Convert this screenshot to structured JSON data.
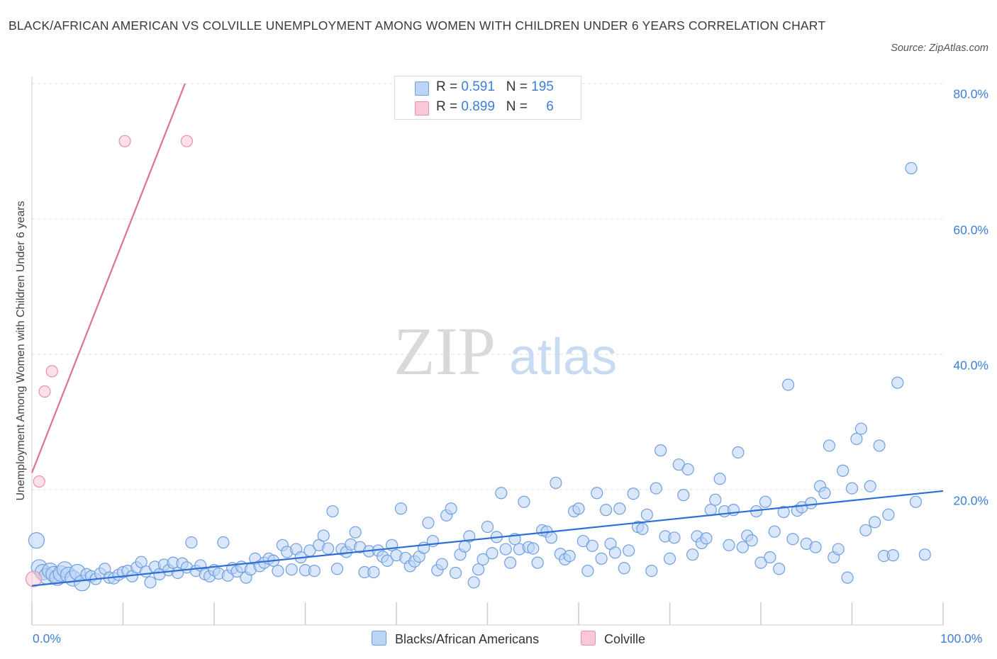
{
  "title": "BLACK/AFRICAN AMERICAN VS COLVILLE UNEMPLOYMENT AMONG WOMEN WITH CHILDREN UNDER 6 YEARS CORRELATION CHART",
  "source": "Source: ZipAtlas.com",
  "watermark": {
    "zip": "ZIP",
    "atlas": "atlas"
  },
  "legend": {
    "r_label": "R =",
    "n_label": "N =",
    "rows": [
      {
        "r": "0.591",
        "n": "195",
        "color": "#bcd4f5",
        "border": "#6f9fe0"
      },
      {
        "r": "0.899",
        "n": "6",
        "color": "#fac8d6",
        "border": "#e88fab"
      }
    ]
  },
  "bottom_legend": [
    {
      "label": "Blacks/African Americans",
      "color": "#bcd4f5",
      "border": "#6f9fe0"
    },
    {
      "label": "Colville",
      "color": "#fac8d6",
      "border": "#e88fab"
    }
  ],
  "chart_data": {
    "type": "scatter",
    "xlabel": "",
    "ylabel": "Unemployment Among Women with Children Under 6 years",
    "xlim": [
      0,
      100
    ],
    "ylim": [
      0,
      80
    ],
    "x_tick_labels": [
      "0.0%",
      "100.0%"
    ],
    "y_tick_labels": [
      "20.0%",
      "40.0%",
      "60.0%",
      "80.0%"
    ],
    "y_ticks": [
      20,
      40,
      60,
      80
    ],
    "grid": "horizontal dashed",
    "series": [
      {
        "name": "Blacks/African Americans",
        "color": "#6f9fe0",
        "fill": "#bcd4f5",
        "trend": {
          "x0": 0,
          "y0": 5.8,
          "x1": 100,
          "y1": 19.8
        },
        "points": [
          [
            0.5,
            12.5
          ],
          [
            0.8,
            8.5
          ],
          [
            1.2,
            7.8
          ],
          [
            1.6,
            7.2
          ],
          [
            2.0,
            8.0
          ],
          [
            2.4,
            7.5
          ],
          [
            2.8,
            7.0
          ],
          [
            3.2,
            7.6
          ],
          [
            3.6,
            8.2
          ],
          [
            4.0,
            7.4
          ],
          [
            4.5,
            6.9
          ],
          [
            5.0,
            7.8
          ],
          [
            5.5,
            6.2
          ],
          [
            6.0,
            7.5
          ],
          [
            6.5,
            7.2
          ],
          [
            7.0,
            6.8
          ],
          [
            7.5,
            7.6
          ],
          [
            8.0,
            8.3
          ],
          [
            8.5,
            7.0
          ],
          [
            9.0,
            6.9
          ],
          [
            9.5,
            7.4
          ],
          [
            10.0,
            7.8
          ],
          [
            10.5,
            8.0
          ],
          [
            11.0,
            7.2
          ],
          [
            11.5,
            8.5
          ],
          [
            12.0,
            9.3
          ],
          [
            12.5,
            7.9
          ],
          [
            13.0,
            6.3
          ],
          [
            13.5,
            8.6
          ],
          [
            14.0,
            7.5
          ],
          [
            14.5,
            8.9
          ],
          [
            15.0,
            8.1
          ],
          [
            15.5,
            9.2
          ],
          [
            16.0,
            7.7
          ],
          [
            16.5,
            9.1
          ],
          [
            17.0,
            8.5
          ],
          [
            17.5,
            12.2
          ],
          [
            18.0,
            8.0
          ],
          [
            18.5,
            8.8
          ],
          [
            19.0,
            7.5
          ],
          [
            19.5,
            7.2
          ],
          [
            20.0,
            8.1
          ],
          [
            20.5,
            7.6
          ],
          [
            21.0,
            12.2
          ],
          [
            21.5,
            7.3
          ],
          [
            22.0,
            8.4
          ],
          [
            22.5,
            7.9
          ],
          [
            23.0,
            8.6
          ],
          [
            23.5,
            7.0
          ],
          [
            24.0,
            8.2
          ],
          [
            24.5,
            9.8
          ],
          [
            25.0,
            8.7
          ],
          [
            25.5,
            9.2
          ],
          [
            26.0,
            9.8
          ],
          [
            26.5,
            9.5
          ],
          [
            27.0,
            8.0
          ],
          [
            27.5,
            11.8
          ],
          [
            28.0,
            10.8
          ],
          [
            28.5,
            8.2
          ],
          [
            29.0,
            11.2
          ],
          [
            29.5,
            10.0
          ],
          [
            30.0,
            8.1
          ],
          [
            30.5,
            11.0
          ],
          [
            31.0,
            8.0
          ],
          [
            31.5,
            11.8
          ],
          [
            32.0,
            13.2
          ],
          [
            32.5,
            11.3
          ],
          [
            33.0,
            16.8
          ],
          [
            33.5,
            8.3
          ],
          [
            34.0,
            11.2
          ],
          [
            34.5,
            10.8
          ],
          [
            35.0,
            11.9
          ],
          [
            35.5,
            13.7
          ],
          [
            36.0,
            11.5
          ],
          [
            36.5,
            7.8
          ],
          [
            37.0,
            10.9
          ],
          [
            37.5,
            7.8
          ],
          [
            38.0,
            11.0
          ],
          [
            38.5,
            10.1
          ],
          [
            39.0,
            9.5
          ],
          [
            39.5,
            11.8
          ],
          [
            40.0,
            10.3
          ],
          [
            40.5,
            17.2
          ],
          [
            41.0,
            9.9
          ],
          [
            41.5,
            8.7
          ],
          [
            42.0,
            9.4
          ],
          [
            42.5,
            10.1
          ],
          [
            43.0,
            11.4
          ],
          [
            43.5,
            15.1
          ],
          [
            44.0,
            12.4
          ],
          [
            44.5,
            8.1
          ],
          [
            45.0,
            9.0
          ],
          [
            45.5,
            16.2
          ],
          [
            46.0,
            17.2
          ],
          [
            46.5,
            7.7
          ],
          [
            47.0,
            10.4
          ],
          [
            47.5,
            11.6
          ],
          [
            48.0,
            13.1
          ],
          [
            48.5,
            6.3
          ],
          [
            49.0,
            8.2
          ],
          [
            49.5,
            9.7
          ],
          [
            50.0,
            14.5
          ],
          [
            50.5,
            10.6
          ],
          [
            51.0,
            13.0
          ],
          [
            51.5,
            19.5
          ],
          [
            52.0,
            11.2
          ],
          [
            52.5,
            9.2
          ],
          [
            53.0,
            12.7
          ],
          [
            53.5,
            11.2
          ],
          [
            54.0,
            18.2
          ],
          [
            54.5,
            11.5
          ],
          [
            55.0,
            11.3
          ],
          [
            55.5,
            9.2
          ],
          [
            56.0,
            14.0
          ],
          [
            56.5,
            13.8
          ],
          [
            57.0,
            12.9
          ],
          [
            57.5,
            21.0
          ],
          [
            58.0,
            10.5
          ],
          [
            58.5,
            9.7
          ],
          [
            59.0,
            10.2
          ],
          [
            59.5,
            16.8
          ],
          [
            60.0,
            17.2
          ],
          [
            60.5,
            12.4
          ],
          [
            61.0,
            8.0
          ],
          [
            61.5,
            11.7
          ],
          [
            62.0,
            19.5
          ],
          [
            62.5,
            9.8
          ],
          [
            63.0,
            17.0
          ],
          [
            63.5,
            12.0
          ],
          [
            64.0,
            10.7
          ],
          [
            64.5,
            17.2
          ],
          [
            65.0,
            8.4
          ],
          [
            65.5,
            11.0
          ],
          [
            66.0,
            19.4
          ],
          [
            66.5,
            14.5
          ],
          [
            67.0,
            14.2
          ],
          [
            67.5,
            16.3
          ],
          [
            68.0,
            8.0
          ],
          [
            68.5,
            20.2
          ],
          [
            69.0,
            25.8
          ],
          [
            69.5,
            13.1
          ],
          [
            70.0,
            9.8
          ],
          [
            70.5,
            12.9
          ],
          [
            71.0,
            23.7
          ],
          [
            71.5,
            19.2
          ],
          [
            72.0,
            23.0
          ],
          [
            72.5,
            10.4
          ],
          [
            73.0,
            13.1
          ],
          [
            73.5,
            12.1
          ],
          [
            74.0,
            12.8
          ],
          [
            74.5,
            17.0
          ],
          [
            75.0,
            18.5
          ],
          [
            75.5,
            21.6
          ],
          [
            76.0,
            16.8
          ],
          [
            76.5,
            11.8
          ],
          [
            77.0,
            17.0
          ],
          [
            77.5,
            25.5
          ],
          [
            78.0,
            11.5
          ],
          [
            78.5,
            13.2
          ],
          [
            79.0,
            12.5
          ],
          [
            79.5,
            16.8
          ],
          [
            80.0,
            9.2
          ],
          [
            80.5,
            18.2
          ],
          [
            81.0,
            10.0
          ],
          [
            81.5,
            13.8
          ],
          [
            82.0,
            8.3
          ],
          [
            82.5,
            16.7
          ],
          [
            83.0,
            35.5
          ],
          [
            83.5,
            12.7
          ],
          [
            84.0,
            16.9
          ],
          [
            84.5,
            17.4
          ],
          [
            85.0,
            12.0
          ],
          [
            85.5,
            18.0
          ],
          [
            86.0,
            11.5
          ],
          [
            86.5,
            20.5
          ],
          [
            87.0,
            19.5
          ],
          [
            87.5,
            26.5
          ],
          [
            88.0,
            10.0
          ],
          [
            88.5,
            11.2
          ],
          [
            89.0,
            22.8
          ],
          [
            89.5,
            7.0
          ],
          [
            90.0,
            20.2
          ],
          [
            90.5,
            27.5
          ],
          [
            91.0,
            29.0
          ],
          [
            91.5,
            14.0
          ],
          [
            92.0,
            20.5
          ],
          [
            92.5,
            15.2
          ],
          [
            93.0,
            26.5
          ],
          [
            93.5,
            10.2
          ],
          [
            94.0,
            16.3
          ],
          [
            94.5,
            10.3
          ],
          [
            95.0,
            35.8
          ],
          [
            96.5,
            67.5
          ],
          [
            97.0,
            18.2
          ],
          [
            98.0,
            10.4
          ]
        ]
      },
      {
        "name": "Colville",
        "color": "#e88fab",
        "fill": "#fac8d6",
        "trend": {
          "x0": 0,
          "y0": 22.5,
          "x1": 16.8,
          "y1": 80
        },
        "points": [
          [
            0.2,
            6.8
          ],
          [
            0.8,
            21.2
          ],
          [
            1.4,
            34.5
          ],
          [
            2.2,
            37.5
          ],
          [
            10.2,
            71.5
          ],
          [
            17.0,
            71.5
          ]
        ]
      }
    ]
  }
}
